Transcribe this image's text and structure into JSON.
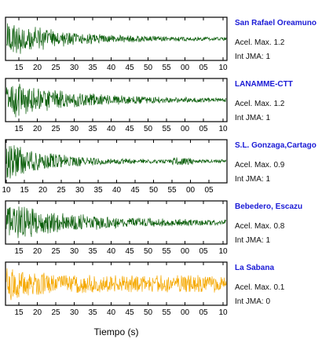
{
  "xlabel": "Tiempo (s)",
  "acel_label": "Acel. Max.",
  "int_label": "Int JMA:",
  "colors": {
    "trace_green": "#0b5e0b",
    "trace_orange": "#f5a800",
    "station_text": "#1a1ad6"
  },
  "chart_data": [
    {
      "type": "line",
      "station": "San Rafael Oreamuno",
      "acel_max": "1.2",
      "int_jma": "1",
      "tick_labels": [
        "15",
        "20",
        "25",
        "30",
        "35",
        "40",
        "45",
        "50",
        "55",
        "00",
        "05",
        "10"
      ],
      "color": "#0b5e0b",
      "decay": 0.25
    },
    {
      "type": "line",
      "station": "LANAMME-CTT",
      "acel_max": "1.2",
      "int_jma": "1",
      "tick_labels": [
        "15",
        "20",
        "25",
        "30",
        "35",
        "40",
        "45",
        "50",
        "55",
        "00",
        "05",
        "10"
      ],
      "color": "#0b5e0b",
      "decay": 0.3
    },
    {
      "type": "line",
      "station": "S.L. Gonzaga,Cartago",
      "acel_max": "0.9",
      "int_jma": "1",
      "tick_labels": [
        "10",
        "15",
        "20",
        "25",
        "30",
        "35",
        "40",
        "45",
        "50",
        "55",
        "00",
        "05"
      ],
      "color": "#0b5e0b",
      "decay": 0.2
    },
    {
      "type": "line",
      "station": "Bebedero, Escazu",
      "acel_max": "0.8",
      "int_jma": "1",
      "tick_labels": [
        "15",
        "20",
        "25",
        "30",
        "35",
        "40",
        "45",
        "50",
        "55",
        "00",
        "05",
        "10"
      ],
      "color": "#0b5e0b",
      "decay": 0.35
    },
    {
      "type": "line",
      "station": "La Sabana",
      "acel_max": "0.1",
      "int_jma": "0",
      "tick_labels": [
        "15",
        "20",
        "25",
        "30",
        "35",
        "40",
        "45",
        "50",
        "55",
        "00",
        "05",
        "10"
      ],
      "color": "#f5a800",
      "decay": 0.08
    }
  ]
}
